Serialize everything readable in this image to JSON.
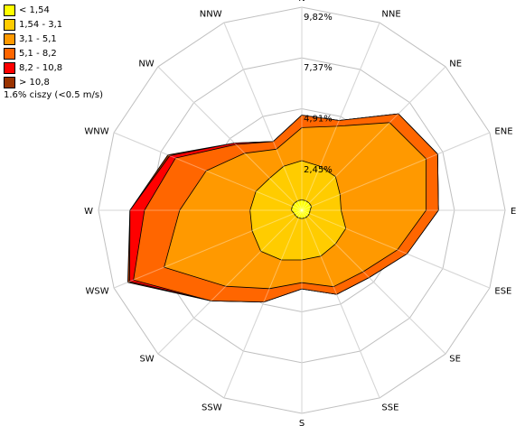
{
  "chart_data": {
    "type": "radar",
    "directions": [
      "N",
      "NNE",
      "NE",
      "ENE",
      "E",
      "ESE",
      "SE",
      "SSE",
      "S",
      "SSW",
      "SW",
      "WSW",
      "W",
      "WNW",
      "NW",
      "NNW"
    ],
    "ring_values": [
      2.45,
      4.91,
      7.37,
      9.82
    ],
    "ring_labels": [
      "2,45%",
      "4,91%",
      "7,37%",
      "9,82%"
    ],
    "rmax": 9.82,
    "grid": true,
    "legend_position": "top-left",
    "calm_note": "1.6% ciszy (<0.5 m/s)",
    "series": [
      {
        "name": "> 10,8",
        "color": "#993300",
        "values": [
          4.6,
          4.7,
          6.6,
          7.1,
          6.6,
          5.5,
          4.6,
          4.4,
          3.8,
          4.8,
          6.2,
          9.1,
          8.3,
          7.0,
          4.6,
          3.6
        ]
      },
      {
        "name": "8,2 - 10,8",
        "color": "#ff0000",
        "values": [
          4.6,
          4.7,
          6.6,
          7.1,
          6.6,
          5.5,
          4.6,
          4.4,
          3.8,
          4.8,
          6.2,
          9.0,
          8.3,
          6.9,
          4.6,
          3.6
        ]
      },
      {
        "name": "5,1 - 8,2",
        "color": "#ff6600",
        "values": [
          4.6,
          4.7,
          6.6,
          7.1,
          6.6,
          5.5,
          4.6,
          4.4,
          3.8,
          4.8,
          6.2,
          8.8,
          7.6,
          6.6,
          4.5,
          3.6
        ]
      },
      {
        "name": "3,1 - 5,1",
        "color": "#ff9900",
        "values": [
          4.0,
          4.4,
          6.0,
          6.5,
          6.0,
          5.0,
          4.2,
          4.0,
          3.5,
          4.1,
          5.2,
          7.2,
          5.9,
          5.0,
          3.9,
          3.2
        ]
      },
      {
        "name": "1,54 - 3,1",
        "color": "#ffcc00",
        "values": [
          2.4,
          2.3,
          2.3,
          2.0,
          1.9,
          2.3,
          2.3,
          2.4,
          2.4,
          2.6,
          2.8,
          2.6,
          2.5,
          2.4,
          2.2,
          2.3
        ]
      },
      {
        "name": "< 1,54",
        "color": "#ffff00",
        "values": [
          0.5,
          0.5,
          0.5,
          0.5,
          0.4,
          0.4,
          0.4,
          0.4,
          0.4,
          0.4,
          0.4,
          0.4,
          0.5,
          0.5,
          0.5,
          0.5
        ]
      }
    ]
  }
}
